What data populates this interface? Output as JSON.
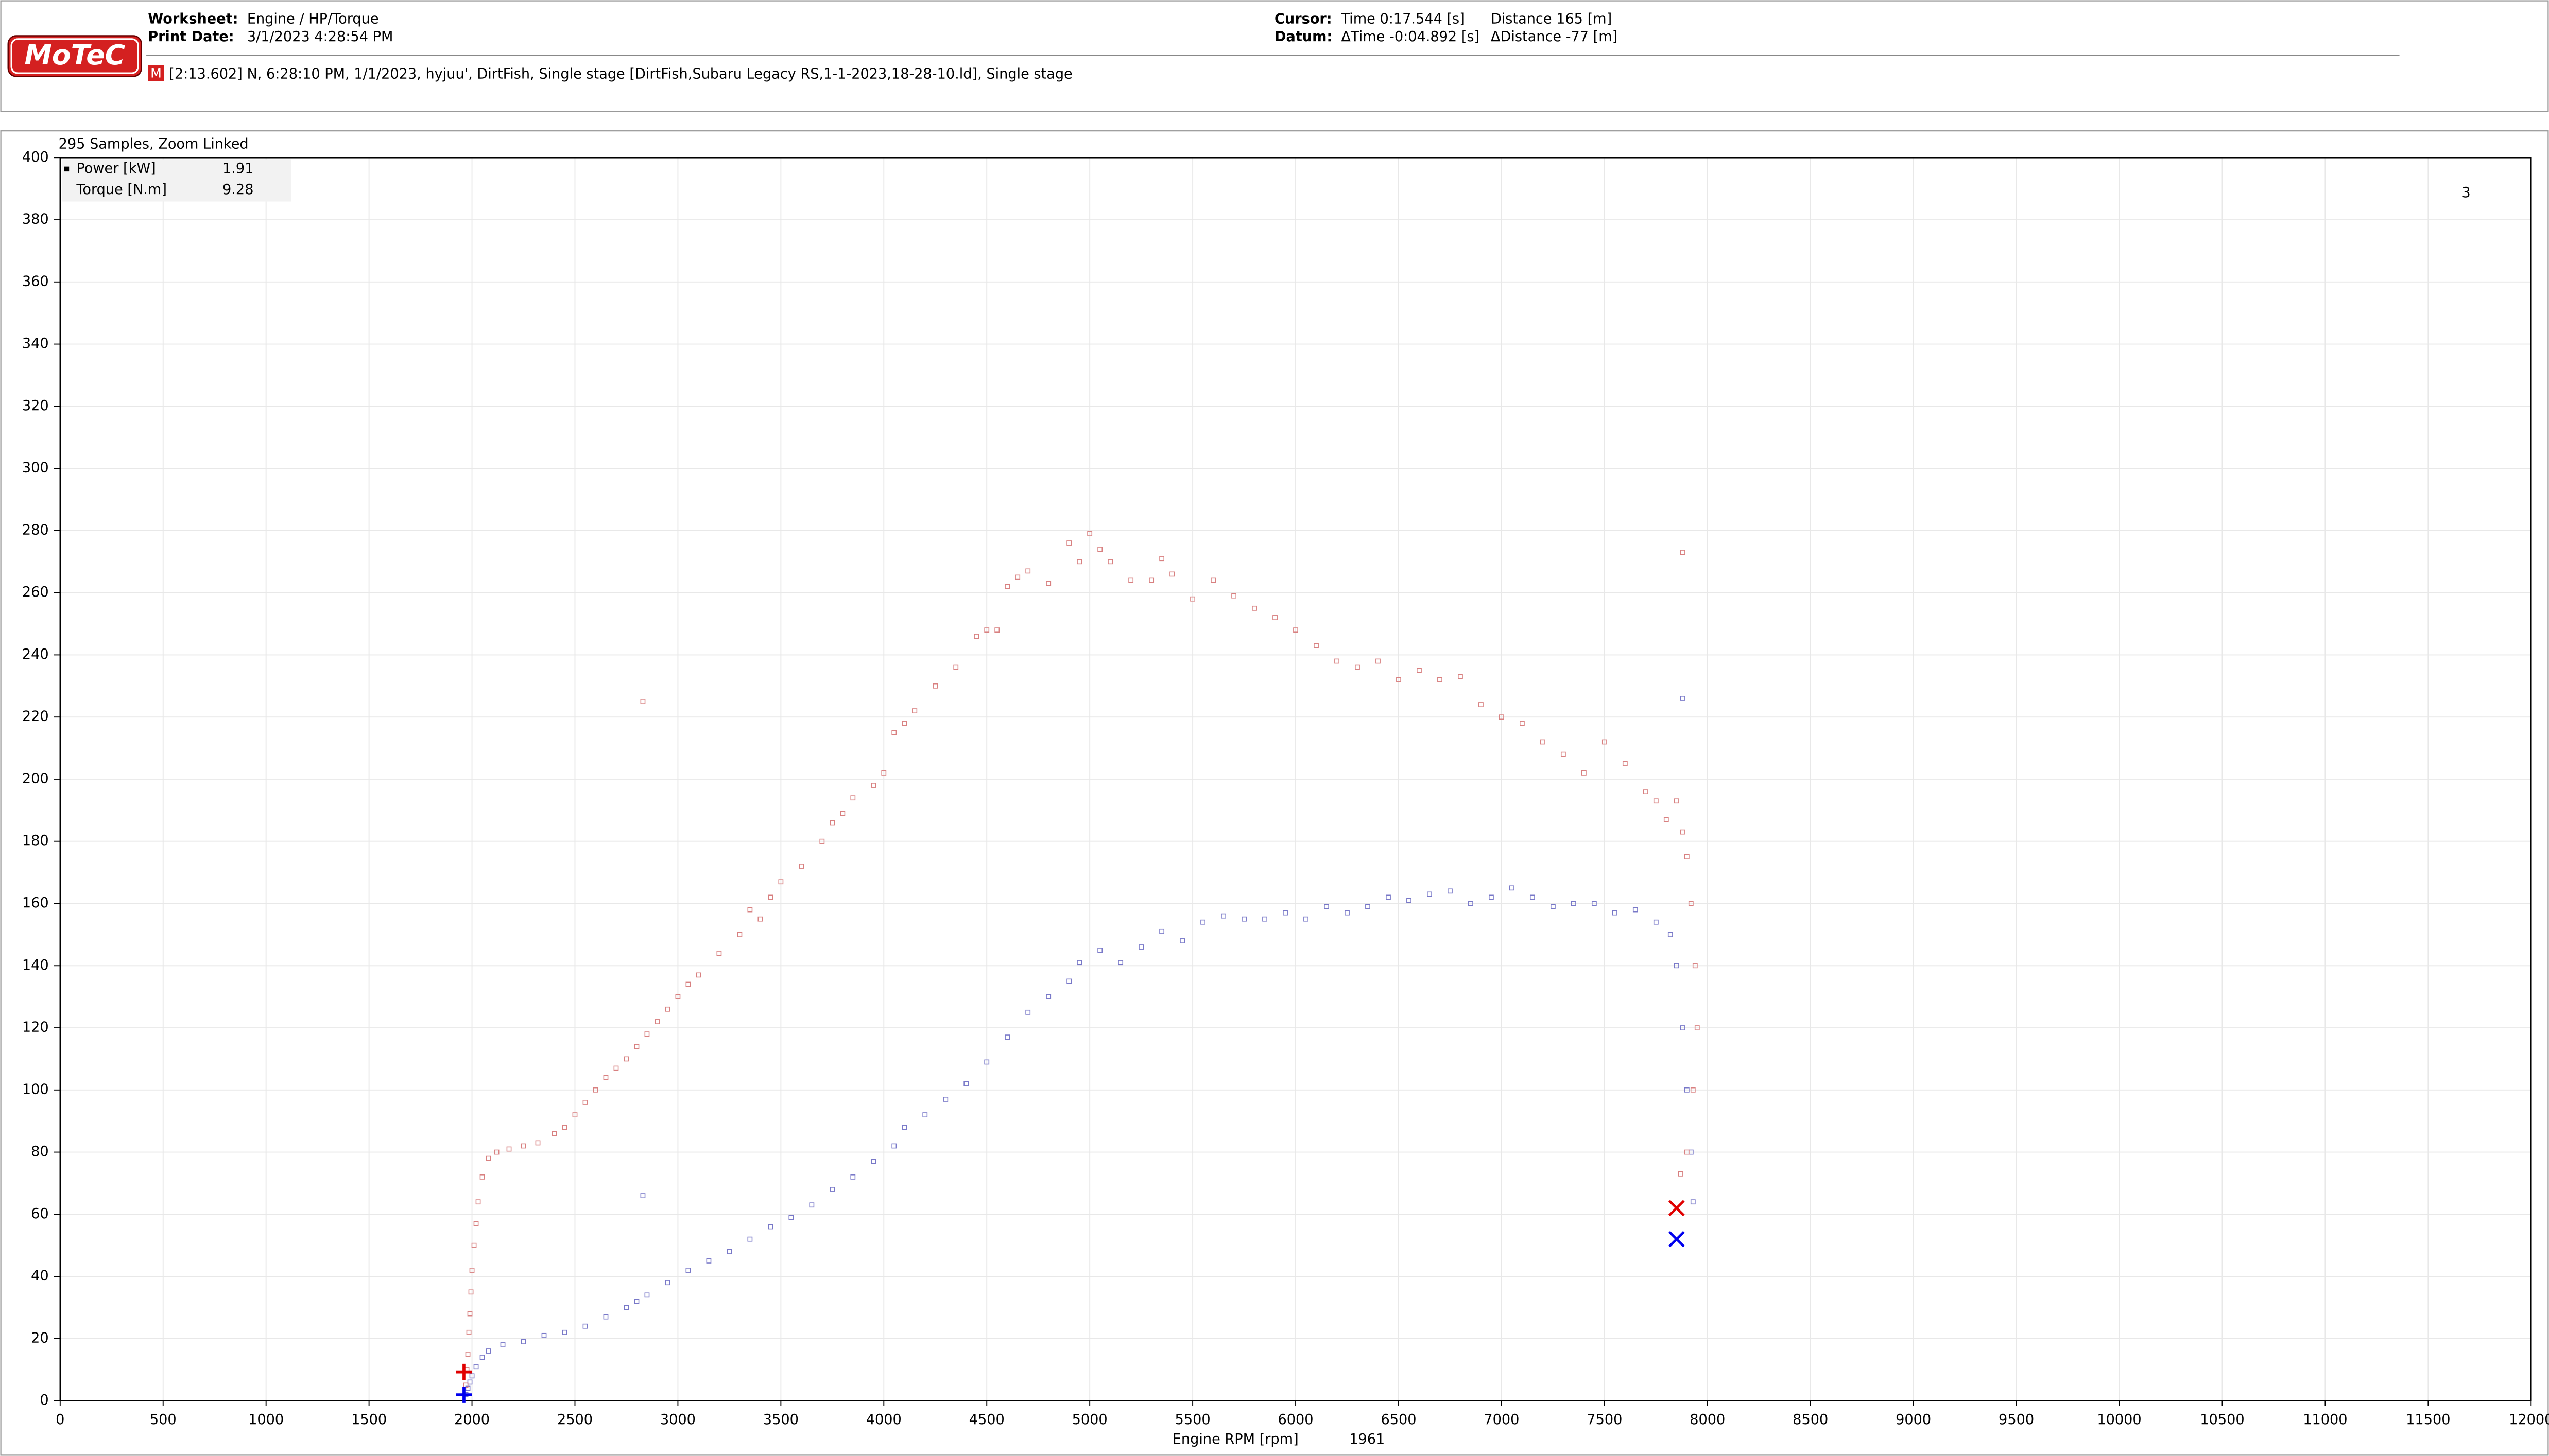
{
  "header": {
    "logo": "MoTeC",
    "worksheet_label": "Worksheet:",
    "worksheet": "Engine / HP/Torque",
    "print_date_label": "Print Date:",
    "print_date": "3/1/2023 4:28:54 PM",
    "cursor_label": "Cursor:",
    "cursor_time": "Time  0:17.544 [s]",
    "cursor_distance": "Distance  165 [m]",
    "datum_label": "Datum:",
    "datum_time": "ΔTime  -0:04.892 [s]",
    "datum_distance": "ΔDistance  -77 [m]",
    "badge": "M",
    "session": "[2:13.602] N, 6:28:10 PM, 1/1/2023, hyjuu', DirtFish, Single stage [DirtFish,Subaru Legacy RS,1-1-2023,18-28-10.ld], Single stage"
  },
  "chart_data": {
    "type": "scatter",
    "subtitle": "295 Samples, Zoom Linked",
    "pane_number": "3",
    "x_label": "Engine RPM [rpm]",
    "cursor_x": 1961,
    "datum_x": 7850,
    "xlim": [
      0,
      12000
    ],
    "xticks": [
      0,
      500,
      1000,
      1500,
      2000,
      2500,
      3000,
      3500,
      4000,
      4500,
      5000,
      5500,
      6000,
      6500,
      7000,
      7500,
      8000,
      8500,
      9000,
      9500,
      10000,
      10500,
      11000,
      11500,
      12000
    ],
    "ylim": [
      0,
      400
    ],
    "yticks": [
      0,
      20,
      40,
      60,
      80,
      100,
      120,
      140,
      160,
      180,
      200,
      220,
      240,
      260,
      280,
      300,
      320,
      340,
      360,
      380,
      400
    ],
    "grid": true,
    "series": [
      {
        "name": "Power [kW]",
        "color": "#0000ee",
        "point_color": "#7878c8",
        "cursor_value": 1.91,
        "datum_value": 52,
        "x": [
          1970,
          1980,
          1990,
          2000,
          2020,
          2050,
          2080,
          2150,
          2250,
          2350,
          2450,
          2550,
          2650,
          2750,
          2800,
          2850,
          2950,
          3050,
          3150,
          3250,
          3350,
          3450,
          3550,
          3650,
          3750,
          3850,
          3950,
          4050,
          4100,
          4200,
          4300,
          4400,
          4500,
          4600,
          4700,
          4800,
          4900,
          4950,
          5050,
          5150,
          5250,
          5350,
          5450,
          5550,
          5650,
          5750,
          5850,
          5950,
          6050,
          6150,
          6250,
          6350,
          6450,
          6550,
          6650,
          6750,
          6850,
          6950,
          7050,
          7150,
          7250,
          7350,
          7450,
          7550,
          7650,
          7750,
          7820,
          7850,
          7880,
          7900,
          7920,
          7930,
          2830,
          7880
        ],
        "values": [
          2,
          4,
          6,
          8,
          11,
          14,
          16,
          18,
          19,
          21,
          22,
          24,
          27,
          30,
          32,
          34,
          38,
          42,
          45,
          48,
          52,
          56,
          59,
          63,
          68,
          72,
          77,
          82,
          88,
          92,
          97,
          102,
          109,
          117,
          125,
          130,
          135,
          141,
          145,
          141,
          146,
          151,
          148,
          154,
          156,
          155,
          155,
          157,
          155,
          159,
          157,
          159,
          162,
          161,
          163,
          164,
          160,
          162,
          165,
          162,
          159,
          160,
          160,
          157,
          158,
          154,
          150,
          140,
          120,
          100,
          80,
          64,
          66,
          226
        ]
      },
      {
        "name": "Torque [N.m]",
        "color": "#e00000",
        "point_color": "#d88080",
        "cursor_value": 9.28,
        "datum_value": 62,
        "x": [
          1970,
          1975,
          1980,
          1985,
          1990,
          1995,
          2000,
          2010,
          2020,
          2030,
          2050,
          2080,
          2120,
          2180,
          2250,
          2320,
          2400,
          2450,
          2500,
          2550,
          2600,
          2650,
          2700,
          2750,
          2800,
          2850,
          2900,
          2950,
          3000,
          3050,
          3100,
          3200,
          3300,
          3350,
          3400,
          3450,
          3500,
          3600,
          3700,
          3750,
          3800,
          3850,
          3950,
          4000,
          4050,
          4100,
          4150,
          4250,
          4350,
          4450,
          4500,
          4550,
          4600,
          4650,
          4700,
          4800,
          4900,
          4950,
          5000,
          5050,
          5100,
          5200,
          5300,
          5350,
          5400,
          5500,
          5600,
          5700,
          5800,
          5900,
          6000,
          6100,
          6200,
          6300,
          6400,
          6500,
          6600,
          6700,
          6800,
          6900,
          7000,
          7100,
          7200,
          7300,
          7400,
          7500,
          7600,
          7700,
          7750,
          7800,
          7850,
          7880,
          7900,
          7920,
          7940,
          7950,
          7930,
          7900,
          7870,
          2830,
          7880
        ],
        "values": [
          5,
          10,
          15,
          22,
          28,
          35,
          42,
          50,
          57,
          64,
          72,
          78,
          80,
          81,
          82,
          83,
          86,
          88,
          92,
          96,
          100,
          104,
          107,
          110,
          114,
          118,
          122,
          126,
          130,
          134,
          137,
          144,
          150,
          158,
          155,
          162,
          167,
          172,
          180,
          186,
          189,
          194,
          198,
          202,
          215,
          218,
          222,
          230,
          236,
          246,
          248,
          248,
          262,
          265,
          267,
          263,
          276,
          270,
          279,
          274,
          270,
          264,
          264,
          271,
          266,
          258,
          264,
          259,
          255,
          252,
          248,
          243,
          238,
          236,
          238,
          232,
          235,
          232,
          233,
          224,
          220,
          218,
          212,
          208,
          202,
          212,
          205,
          196,
          193,
          187,
          193,
          183,
          175,
          160,
          140,
          120,
          100,
          80,
          73,
          225,
          273
        ]
      }
    ]
  }
}
